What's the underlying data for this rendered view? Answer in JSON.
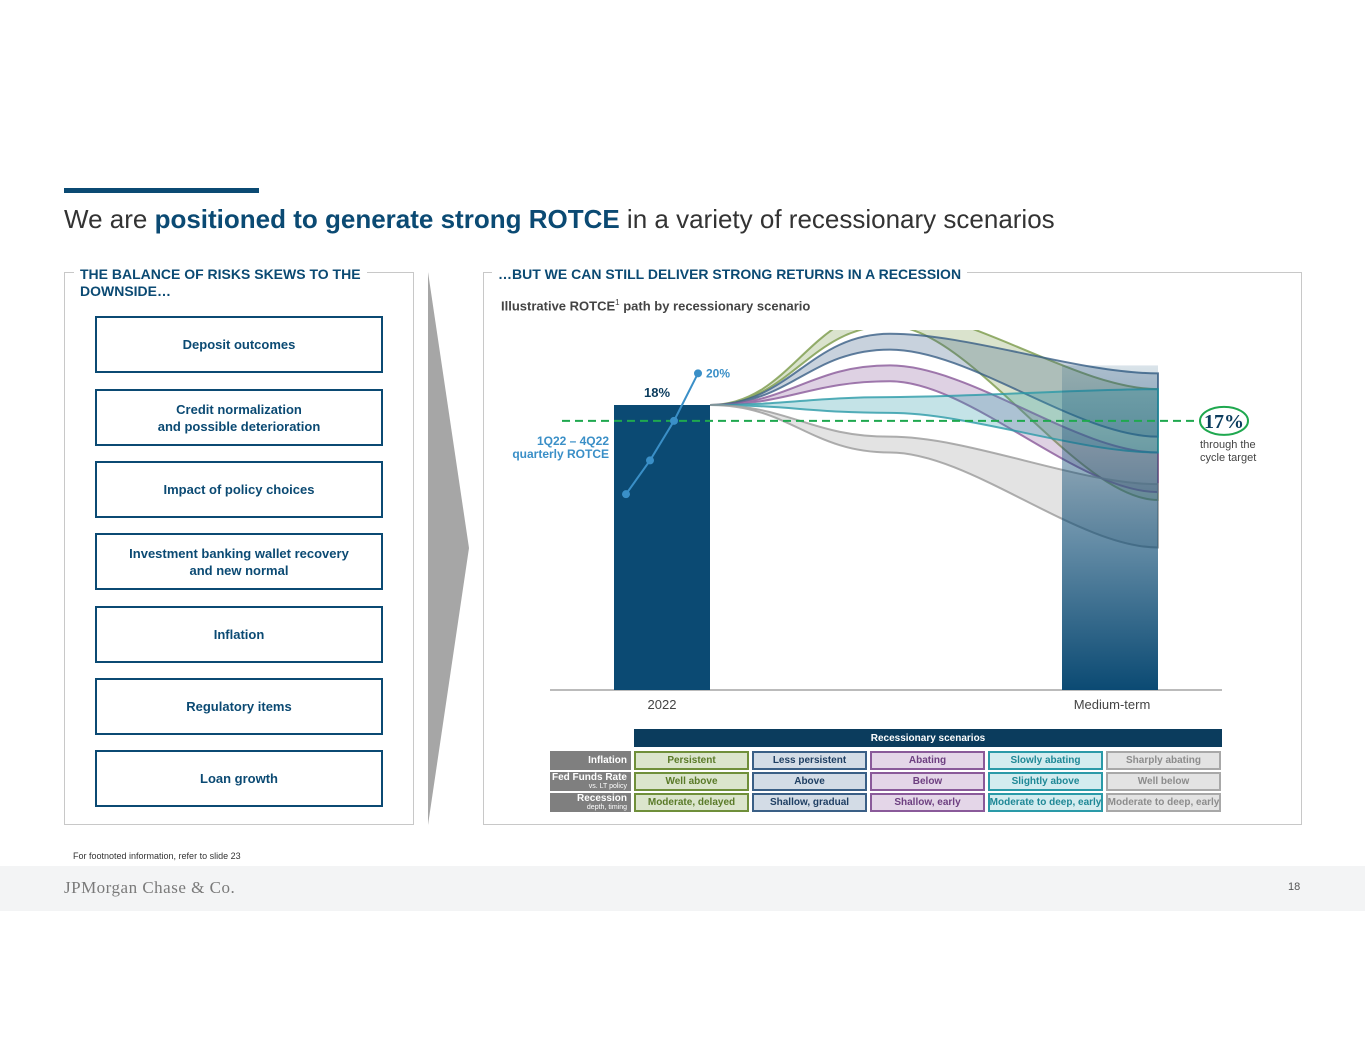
{
  "title": {
    "prefix": "We are ",
    "highlight": "positioned to generate strong ROTCE",
    "suffix": " in a variety of recessionary scenarios"
  },
  "left_panel": {
    "heading_line1": "THE BALANCE OF RISKS SKEWS TO THE",
    "heading_line2": "DOWNSIDE…",
    "risks": [
      {
        "line1": "Deposit outcomes",
        "line2": ""
      },
      {
        "line1": "Credit normalization",
        "line2": "and possible deterioration"
      },
      {
        "line1": "Impact of policy choices",
        "line2": ""
      },
      {
        "line1": "Investment banking wallet recovery",
        "line2": "and new normal"
      },
      {
        "line1": "Inflation",
        "line2": ""
      },
      {
        "line1": "Regulatory items",
        "line2": ""
      },
      {
        "line1": "Loan growth",
        "line2": ""
      }
    ]
  },
  "right_panel": {
    "heading": "…BUT WE CAN STILL DELIVER STRONG RETURNS IN A RECESSION",
    "subtitle": "Illustrative ROTCE",
    "subtitle_sup": "1",
    "subtitle_rest": " path by recessionary scenario"
  },
  "chart_data": {
    "type": "bar",
    "title": "Illustrative ROTCE path by recessionary scenario",
    "categories": [
      "2022",
      "Medium-term"
    ],
    "bar_value_label": "18%",
    "bar_value": 18,
    "quarterly": {
      "label_line1": "1Q22 – 4Q22",
      "label_line2": "quarterly ROTCE",
      "end_label": "20%",
      "values": [
        13,
        14.5,
        17,
        20
      ]
    },
    "target": {
      "value": 17,
      "label": "17%",
      "note_line1": "through the",
      "note_line2": "cycle target"
    },
    "scenario_bands": [
      {
        "name": "Persistent",
        "color": "#7a9a4a",
        "start": 18,
        "peak": [
          23,
          24
        ],
        "end": [
          12,
          19
        ]
      },
      {
        "name": "Less persistent",
        "color": "#3a5f86",
        "start": 18,
        "peak": [
          21.5,
          22.5
        ],
        "end": [
          16,
          20
        ]
      },
      {
        "name": "Abating",
        "color": "#8a5a9a",
        "start": 18,
        "peak": [
          19.5,
          20.5
        ],
        "end": [
          12.5,
          15
        ]
      },
      {
        "name": "Slowly abating",
        "color": "#2a9aa8",
        "start": 18,
        "peak": [
          17.5,
          18.5
        ],
        "end": [
          15,
          19
        ]
      },
      {
        "name": "Sharply abating",
        "color": "#9a9a9a",
        "start": 18,
        "peak": [
          15,
          16
        ],
        "end": [
          9,
          13
        ]
      }
    ],
    "colors": {
      "bar": "#0b4a73",
      "quarterly": "#3a8fc7",
      "target": "#1fa84f"
    }
  },
  "table": {
    "header": "Recessionary scenarios",
    "rows": [
      {
        "label": "Inflation",
        "sub": "",
        "cells": [
          "Persistent",
          "Less persistent",
          "Abating",
          "Slowly abating",
          "Sharply abating"
        ]
      },
      {
        "label": "Fed Funds Rate",
        "sub": "vs. LT policy",
        "cells": [
          "Well above",
          "Above",
          "Below",
          "Slightly above",
          "Well below"
        ]
      },
      {
        "label": "Recession",
        "sub": "depth, timing",
        "cells": [
          "Moderate, delayed",
          "Shallow, gradual",
          "Shallow, early",
          "Moderate to deep, early",
          "Moderate to deep, early"
        ]
      }
    ]
  },
  "footer": {
    "footnote": "For footnoted information, refer to slide 23",
    "logo": "JPMorgan Chase & Co.",
    "page": "18"
  }
}
